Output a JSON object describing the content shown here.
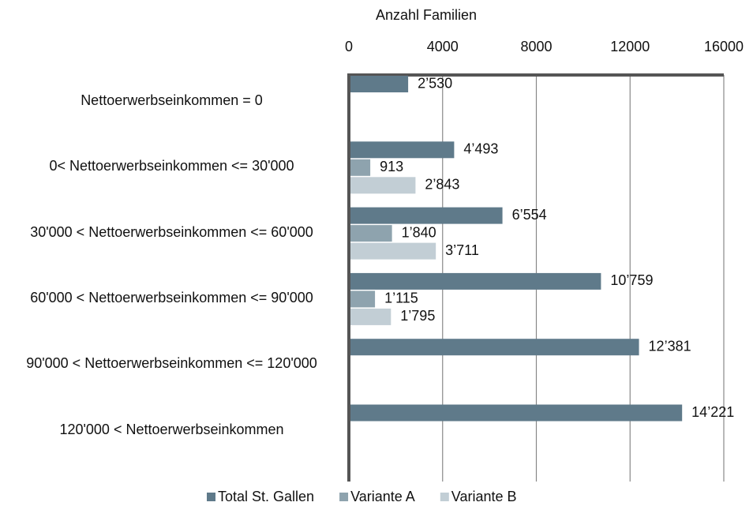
{
  "chart_data": {
    "type": "hbar",
    "x_label": "Anzahl Familien",
    "categories": [
      "Nettoerwerbseinkommen = 0",
      "0< Nettoerwerbseinkommen <= 30'000",
      "30'000 < Nettoerwerbseinkommen <= 60'000",
      "60'000 < Nettoerwerbseinkommen <= 90'000",
      "90'000 < Nettoerwerbseinkommen <= 120'000",
      "120'000 < Nettoerwerbseinkommen"
    ],
    "series": [
      {
        "name": "Total St. Gallen",
        "color": "#5f7a8a",
        "values": [
          2530,
          4493,
          6554,
          10759,
          12381,
          14221
        ],
        "value_labels": [
          "2’530",
          "4’493",
          "6’554",
          "10’759",
          "12’381",
          "14’221"
        ]
      },
      {
        "name": "Variante A",
        "color": "#8ea3ae",
        "values": [
          null,
          913,
          1840,
          1115,
          null,
          null
        ],
        "value_labels": [
          null,
          "913",
          "1’840",
          "1’115",
          null,
          null
        ]
      },
      {
        "name": "Variante B",
        "color": "#c2ced5",
        "values": [
          null,
          2843,
          3711,
          1795,
          null,
          null
        ],
        "value_labels": [
          null,
          "2’843",
          "3’711",
          "1’795",
          null,
          null
        ]
      }
    ],
    "xlim": [
      0,
      16000
    ],
    "xticks": [
      0,
      4000,
      8000,
      12000,
      16000
    ],
    "grid": true,
    "legend": "bottom"
  }
}
